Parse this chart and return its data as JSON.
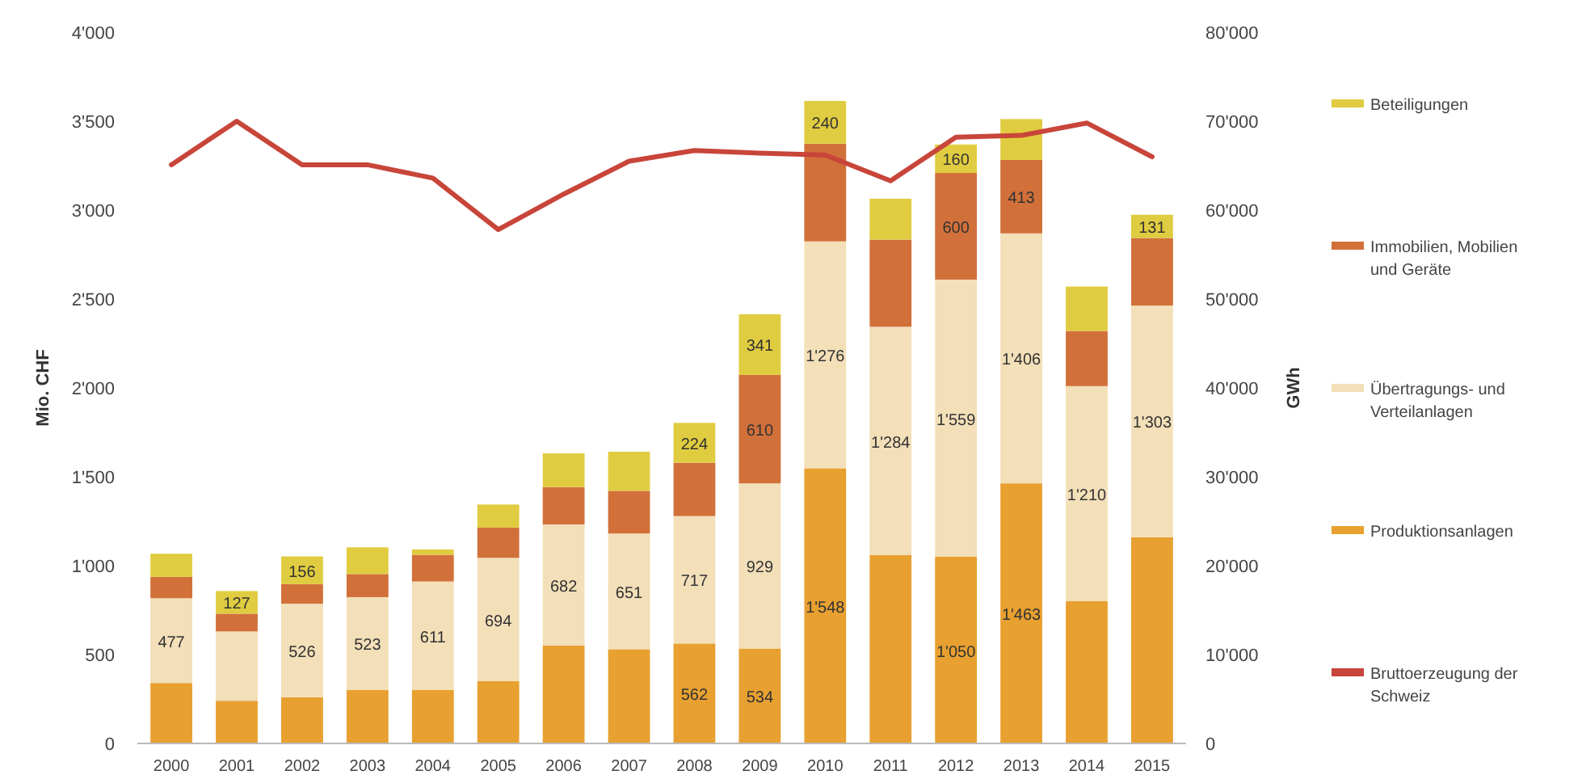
{
  "chart_data": {
    "type": "bar",
    "stacked": true,
    "ylabel": "Mio. CHF",
    "y2label": "GWh",
    "legend": "right",
    "grid": false,
    "categories": [
      "2000",
      "2001",
      "2002",
      "2003",
      "2004",
      "2005",
      "2006",
      "2007",
      "2008",
      "2009",
      "2010",
      "2011",
      "2012",
      "2013",
      "2014",
      "2015"
    ],
    "ylim": [
      0,
      4000
    ],
    "yticks": [
      0,
      {
        "value": 500,
        "label": "500"
      },
      {
        "value": 1000,
        "label": "1'000"
      },
      {
        "value": 1500,
        "label": "1'500"
      },
      {
        "value": 2000,
        "label": "2'000"
      },
      {
        "value": 2500,
        "label": "2'500"
      },
      {
        "value": 3000,
        "label": "3'000"
      },
      {
        "value": 3500,
        "label": "3'500"
      },
      {
        "value": 4000,
        "label": "4'000"
      }
    ],
    "y2lim": [
      0,
      80000
    ],
    "y2ticks": [
      0,
      {
        "value": 10000,
        "label": "10'000"
      },
      {
        "value": 20000,
        "label": "20'000"
      },
      {
        "value": 30000,
        "label": "30'000"
      },
      {
        "value": 40000,
        "label": "40'000"
      },
      {
        "value": 50000,
        "label": "50'000"
      },
      {
        "value": 60000,
        "label": "60'000"
      },
      {
        "value": 70000,
        "label": "70'000"
      },
      {
        "value": 80000,
        "label": "80'000"
      }
    ],
    "series": [
      {
        "name": "Produktionsanlagen",
        "color": "#e8a030",
        "values": [
          340,
          240,
          260,
          300,
          300,
          350,
          550,
          530,
          562,
          534,
          1548,
          1060,
          1050,
          1463,
          800,
          1160
        ],
        "value_labels": [
          null,
          null,
          null,
          null,
          null,
          null,
          null,
          null,
          "562",
          "534",
          "1'548",
          null,
          "1'050",
          "1'463",
          null,
          null
        ]
      },
      {
        "name": "Übertragungs- und Verteilanlagen",
        "color": "#f3dfb8",
        "values": [
          477,
          390,
          526,
          523,
          611,
          694,
          682,
          651,
          717,
          929,
          1276,
          1284,
          1559,
          1406,
          1210,
          1303
        ],
        "value_labels": [
          "477",
          null,
          "526",
          "523",
          "611",
          "694",
          "682",
          "651",
          "717",
          "929",
          "1'276",
          "1'284",
          "1'559",
          "1'406",
          "1'210",
          "1'303"
        ]
      },
      {
        "name": "Immobilien, Mobilien und Geräte",
        "color": "#d2703a",
        "values": [
          120,
          100,
          110,
          130,
          150,
          170,
          210,
          240,
          300,
          610,
          550,
          490,
          600,
          413,
          310,
          380
        ],
        "value_labels": [
          null,
          null,
          null,
          null,
          null,
          null,
          null,
          null,
          null,
          "610",
          null,
          null,
          "600",
          "413",
          null,
          null
        ]
      },
      {
        "name": "Beteiligungen",
        "color": "#e0cc40",
        "values": [
          130,
          127,
          156,
          150,
          30,
          130,
          190,
          220,
          224,
          341,
          240,
          230,
          160,
          230,
          250,
          131
        ],
        "value_labels": [
          null,
          "127",
          "156",
          null,
          null,
          null,
          null,
          null,
          "224",
          "341",
          "240",
          null,
          "160",
          null,
          null,
          "131"
        ]
      },
      {
        "name": "Bruttoerzeugung der Schweiz",
        "type": "line",
        "axis": "y2",
        "color": "#c8453a",
        "values": [
          65100,
          70000,
          65100,
          65100,
          63600,
          57800,
          61800,
          65500,
          66700,
          66400,
          66200,
          63300,
          68200,
          68400,
          69800,
          66000
        ]
      }
    ]
  }
}
